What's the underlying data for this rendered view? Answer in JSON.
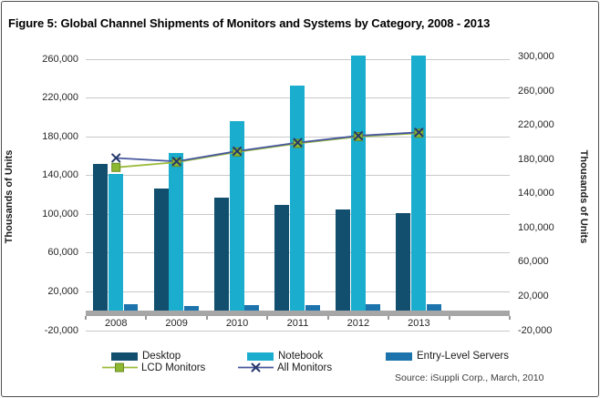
{
  "figure": {
    "title": "Figure 5: Global Channel Shipments of Monitors and Systems by Category, 2008 - 2013"
  },
  "source": "Source: iSuppli Corp., March, 2010",
  "chart_data": {
    "type": "bar",
    "title": "Figure 5: Global Channel Shipments of Monitors and Systems by Category, 2008 - 2013",
    "categories": [
      "2008",
      "2009",
      "2010",
      "2011",
      "2012",
      "2013"
    ],
    "left_axis": {
      "title": "Thousands of Units",
      "min": -20000,
      "max": 280000,
      "ticks": [
        {
          "v": 260000,
          "label": "260,000"
        },
        {
          "v": 220000,
          "label": "220,000"
        },
        {
          "v": 180000,
          "label": "180,000"
        },
        {
          "v": 140000,
          "label": "140,000"
        },
        {
          "v": 100000,
          "label": "100,000"
        },
        {
          "v": 60000,
          "label": "60,000"
        },
        {
          "v": 20000,
          "label": "20,000"
        },
        {
          "v": -20000,
          "label": "-20,000"
        }
      ]
    },
    "right_axis": {
      "title": "Thousands of Units",
      "min": -20000,
      "max": 320000,
      "ticks": [
        {
          "v": 300000,
          "label": "300,000"
        },
        {
          "v": 260000,
          "label": "260,000"
        },
        {
          "v": 220000,
          "label": "220,000"
        },
        {
          "v": 180000,
          "label": "180,000"
        },
        {
          "v": 140000,
          "label": "140,000"
        },
        {
          "v": 100000,
          "label": "100,000"
        },
        {
          "v": 60000,
          "label": "60,000"
        },
        {
          "v": 20000,
          "label": "20,000"
        },
        {
          "v": -20000,
          "label": "-20,000"
        }
      ]
    },
    "bar_series": [
      {
        "name": "Desktop",
        "color": "#124e6e",
        "values": [
          152000,
          127000,
          117000,
          110000,
          105000,
          101000
        ]
      },
      {
        "name": "Notebook",
        "color": "#1badce",
        "values": [
          142000,
          163000,
          196000,
          233000,
          264000,
          264000
        ]
      },
      {
        "name": "Entry-Level Servers",
        "color": "#1d74ad",
        "values": [
          7000,
          5500,
          6000,
          6500,
          7000,
          7000
        ]
      }
    ],
    "line_series": [
      {
        "name": "LCD Monitors",
        "axis": "right",
        "color": "#9bbb3c",
        "marker": "square",
        "marker_color": "#8cb832",
        "values": [
          171000,
          177000,
          189000,
          199000,
          207000,
          211000
        ]
      },
      {
        "name": "All Monitors",
        "axis": "right",
        "color": "#47579e",
        "marker": "x",
        "marker_color": "#24386b",
        "values": [
          182000,
          178000,
          190000,
          200000,
          208000,
          212000
        ]
      }
    ],
    "grid": true,
    "legend_position": "bottom",
    "colors": {
      "gridline": "#c9c9c9",
      "axis_band": "#a6a6a6",
      "tick_text": "#262626"
    }
  }
}
